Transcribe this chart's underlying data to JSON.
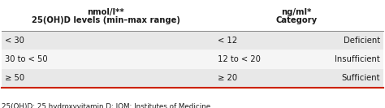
{
  "col1_header_line1": "25(OH)D levels (min–max range)",
  "col1_header_line2": "nmol/l**",
  "col2_header_line1": "Category",
  "col2_header_line2": "ng/ml*",
  "rows": [
    [
      "< 30",
      "< 12",
      "Deficient"
    ],
    [
      "30 to < 50",
      "12 to < 20",
      "Insufficient"
    ],
    [
      "≥ 50",
      "≥ 20",
      "Sufficient"
    ]
  ],
  "footer": "25(OH)D: 25 hydroxyvitamin D; IOM: Institutes of Medicine.",
  "white_color": "#ffffff",
  "row_bg_odd": "#e8e8e8",
  "row_bg_even": "#f5f5f5",
  "text_color": "#1a1a1a",
  "red_line_color": "#cc2200",
  "header_line_color": "#888888",
  "font_size_header": 7.2,
  "font_size_body": 7.2,
  "font_size_footer": 6.3
}
